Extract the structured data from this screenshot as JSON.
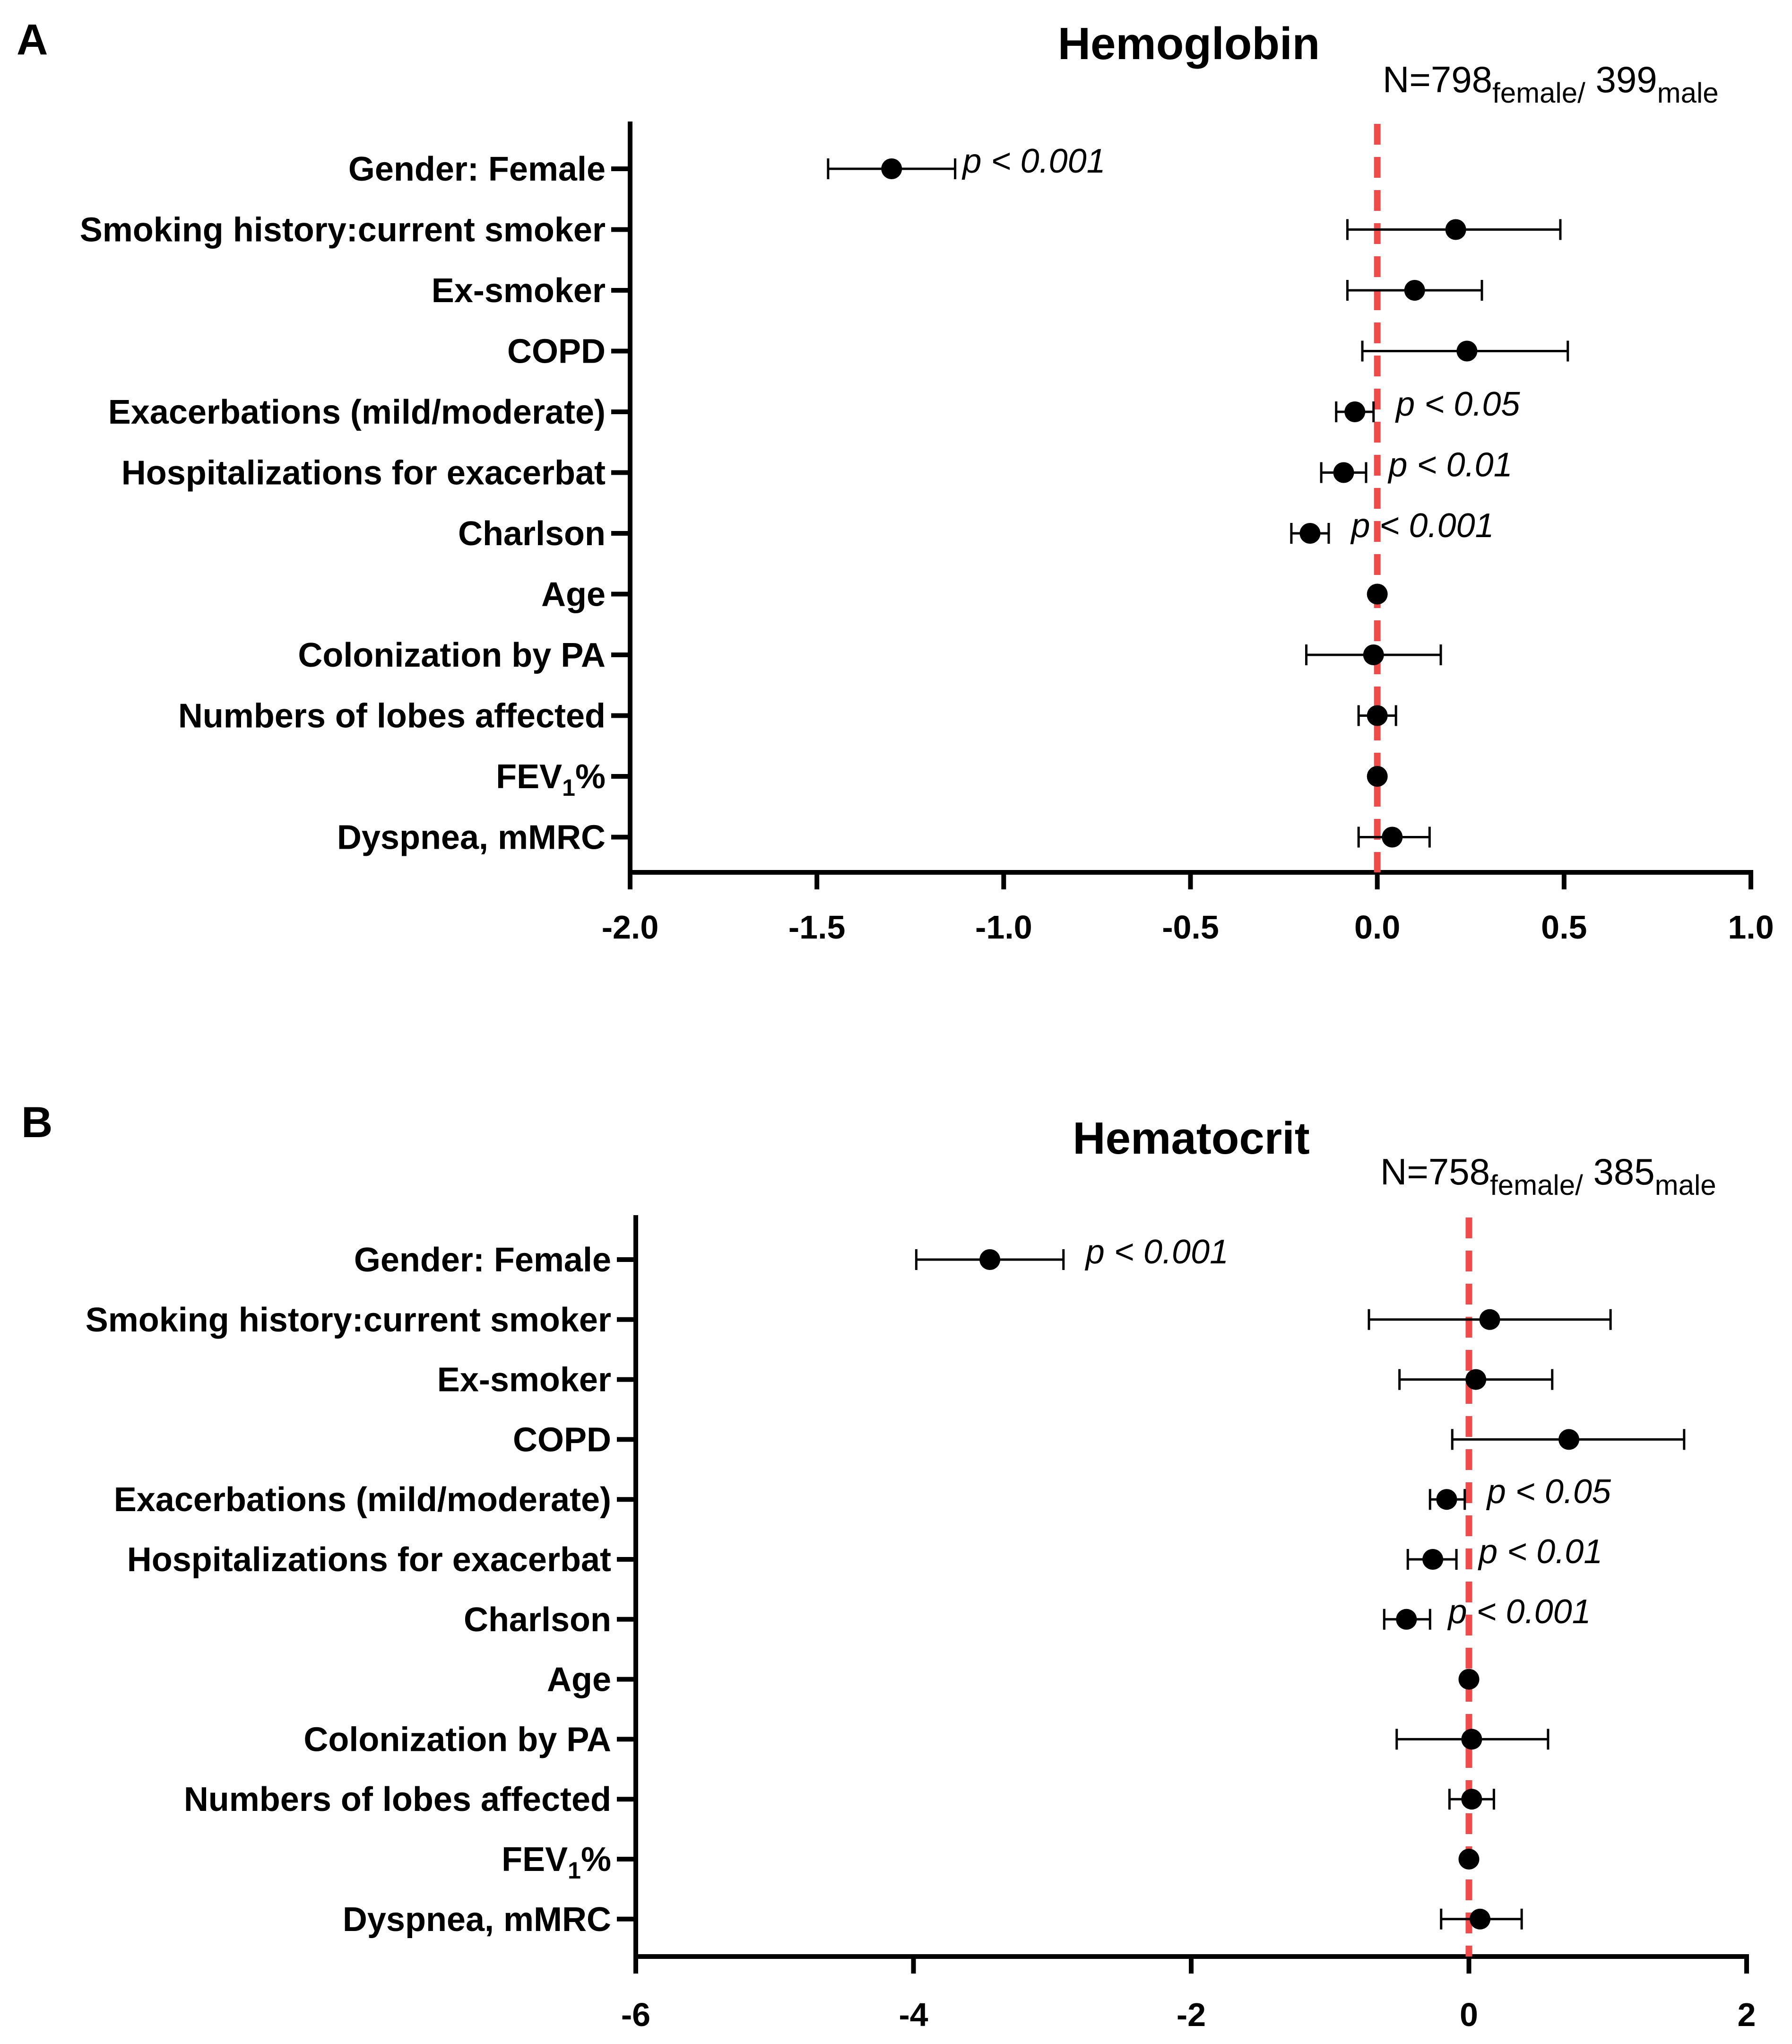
{
  "chart_data": [
    {
      "type": "forest",
      "panel_label": "A",
      "title": "Hemoglobin",
      "n_annotation": {
        "prefix": "N=",
        "female_n": "798",
        "female_label": "female/",
        "male_n": "399",
        "male_label": "male"
      },
      "categories": [
        {
          "text": "Gender: Female"
        },
        {
          "text": "Smoking history:current smoker"
        },
        {
          "text": "Ex-smoker"
        },
        {
          "text": "COPD"
        },
        {
          "text": "Exacerbations (mild/moderate)"
        },
        {
          "text": "Hospitalizations for exacerbat"
        },
        {
          "text": "Charlson"
        },
        {
          "text": "Age"
        },
        {
          "text": "Colonization by PA"
        },
        {
          "text": "Numbers of lobes affected"
        },
        {
          "text": "FEV",
          "sub": "1",
          "after": "%"
        },
        {
          "text": "Dyspnea, mMRC"
        }
      ],
      "estimates": [
        -1.3,
        0.21,
        0.1,
        0.24,
        -0.06,
        -0.09,
        -0.18,
        0.0,
        -0.01,
        0.0,
        0.0,
        0.04
      ],
      "ci_low": [
        -1.47,
        -0.08,
        -0.08,
        -0.04,
        -0.11,
        -0.15,
        -0.23,
        0.0,
        -0.19,
        -0.05,
        0.0,
        -0.05
      ],
      "ci_high": [
        -1.13,
        0.49,
        0.28,
        0.51,
        -0.01,
        -0.03,
        -0.13,
        0.0,
        0.17,
        0.05,
        0.0,
        0.14
      ],
      "p_values": [
        {
          "row": 0,
          "text": "p < 0.001",
          "at": -1.11
        },
        {
          "row": 4,
          "text": "p < 0.05",
          "at": 0.05
        },
        {
          "row": 5,
          "text": "p < 0.01",
          "at": 0.03
        },
        {
          "row": 6,
          "text": "p < 0.001",
          "at": -0.07
        }
      ],
      "xlim": [
        -2.0,
        1.0
      ],
      "xticks": [
        -2.0,
        -1.5,
        -1.0,
        -0.5,
        0.0,
        0.5,
        1.0
      ],
      "xtick_labels": [
        "-2.0",
        "-1.5",
        "-1.0",
        "-0.5",
        "0.0",
        "0.5",
        "1.0"
      ],
      "reference_x": 0,
      "reference_color": "#ee4b4b"
    },
    {
      "type": "forest",
      "panel_label": "B",
      "title": "Hematocrit",
      "n_annotation": {
        "prefix": "N=",
        "female_n": "758",
        "female_label": "female/",
        "male_n": "385",
        "male_label": "male"
      },
      "categories": [
        {
          "text": "Gender: Female"
        },
        {
          "text": "Smoking history:current smoker"
        },
        {
          "text": "Ex-smoker"
        },
        {
          "text": "COPD"
        },
        {
          "text": "Exacerbations (mild/moderate)"
        },
        {
          "text": "Hospitalizations for exacerbat"
        },
        {
          "text": "Charlson"
        },
        {
          "text": "Age"
        },
        {
          "text": "Colonization by PA"
        },
        {
          "text": "Numbers of lobes affected"
        },
        {
          "text": "FEV",
          "sub": "1",
          "after": "%"
        },
        {
          "text": "Dyspnea, mMRC"
        }
      ],
      "estimates": [
        -3.45,
        0.15,
        0.05,
        0.72,
        -0.16,
        -0.26,
        -0.45,
        0.0,
        0.02,
        0.02,
        0.0,
        0.08
      ],
      "ci_low": [
        -3.98,
        -0.72,
        -0.5,
        -0.12,
        -0.28,
        -0.44,
        -0.61,
        0.0,
        -0.52,
        -0.14,
        0.0,
        -0.2
      ],
      "ci_high": [
        -2.92,
        1.02,
        0.6,
        1.55,
        -0.03,
        -0.09,
        -0.28,
        0.0,
        0.57,
        0.18,
        0.0,
        0.38
      ],
      "p_values": [
        {
          "row": 0,
          "text": "p < 0.001",
          "at": -2.76
        },
        {
          "row": 4,
          "text": "p < 0.05",
          "at": 0.13
        },
        {
          "row": 5,
          "text": "p < 0.01",
          "at": 0.07
        },
        {
          "row": 6,
          "text": "p < 0.001",
          "at": -0.15
        }
      ],
      "xlim": [
        -6,
        2
      ],
      "xticks": [
        -6,
        -4,
        -2,
        0,
        2
      ],
      "xtick_labels": [
        "-6",
        "-4",
        "-2",
        "0",
        "2"
      ],
      "reference_x": 0,
      "reference_color": "#ee4b4b"
    }
  ]
}
